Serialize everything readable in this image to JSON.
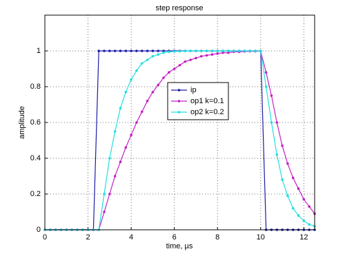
{
  "chart_data": {
    "type": "line",
    "title": "step response",
    "xlabel": "time, µs",
    "ylabel": "amplitude",
    "x": [
      0,
      0.25,
      0.5,
      0.75,
      1,
      1.25,
      1.5,
      1.75,
      2,
      2.25,
      2.5,
      2.75,
      3,
      3.25,
      3.5,
      3.75,
      4,
      4.25,
      4.5,
      4.75,
      5,
      5.25,
      5.5,
      5.75,
      6,
      6.25,
      6.5,
      6.75,
      7,
      7.25,
      7.5,
      7.75,
      8,
      8.25,
      8.5,
      8.75,
      9,
      9.25,
      9.5,
      9.75,
      10,
      10.25,
      10.5,
      10.75,
      11,
      11.25,
      11.5,
      11.75,
      12,
      12.25,
      12.5
    ],
    "series": [
      {
        "name": "ip",
        "color": "#1a1aa6",
        "values": [
          0,
          0,
          0,
          0,
          0,
          0,
          0,
          0,
          0,
          0,
          1,
          1,
          1,
          1,
          1,
          1,
          1,
          1,
          1,
          1,
          1,
          1,
          1,
          1,
          1,
          1,
          1,
          1,
          1,
          1,
          1,
          1,
          1,
          1,
          1,
          1,
          1,
          1,
          1,
          1,
          1,
          0,
          0,
          0,
          0,
          0,
          0,
          0,
          0,
          0,
          0
        ]
      },
      {
        "name": "op1 k=0.1",
        "color": "#c21fc2",
        "values": [
          0,
          0,
          0,
          0,
          0,
          0,
          0,
          0,
          0,
          0,
          0,
          0.1,
          0.2,
          0.3,
          0.38,
          0.46,
          0.53,
          0.6,
          0.66,
          0.72,
          0.77,
          0.81,
          0.85,
          0.88,
          0.9,
          0.92,
          0.94,
          0.95,
          0.96,
          0.97,
          0.975,
          0.98,
          0.985,
          0.99,
          0.99,
          0.995,
          0.995,
          0.997,
          0.998,
          0.998,
          0.999,
          0.88,
          0.75,
          0.6,
          0.47,
          0.37,
          0.29,
          0.23,
          0.17,
          0.13,
          0.09
        ]
      },
      {
        "name": "op2 k=0.2",
        "color": "#22dede",
        "values": [
          0,
          0,
          0,
          0,
          0,
          0,
          0,
          0,
          0,
          0,
          0,
          0.2,
          0.4,
          0.55,
          0.68,
          0.77,
          0.84,
          0.89,
          0.93,
          0.95,
          0.97,
          0.98,
          0.99,
          0.995,
          0.997,
          0.998,
          0.999,
          1,
          1,
          1,
          1,
          1,
          1,
          1,
          1,
          1,
          1,
          1,
          1,
          1,
          1,
          0.8,
          0.6,
          0.42,
          0.28,
          0.19,
          0.12,
          0.08,
          0.05,
          0.03,
          0.02
        ]
      }
    ],
    "xlim": [
      0,
      12.5
    ],
    "ylim": [
      0,
      1.2
    ],
    "xticks": [
      0,
      2,
      4,
      6,
      8,
      10,
      12
    ],
    "yticks": [
      0,
      0.2,
      0.4,
      0.6,
      0.8,
      1
    ],
    "grid": true,
    "legend": "center"
  }
}
